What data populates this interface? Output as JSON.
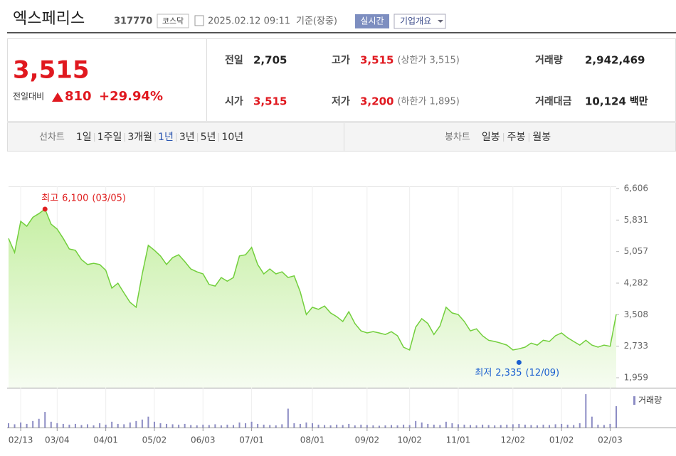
{
  "header": {
    "name": "엑스페리스",
    "code": "317770",
    "market": "코스닥",
    "datetime": "2025.02.12 09:11",
    "basis": "기준(장중)",
    "realtime": "실시간",
    "overview": "기업개요"
  },
  "quote": {
    "price": "3,515",
    "change_label": "전일대비",
    "change": "810",
    "change_pct": "+29.94%"
  },
  "stats": [
    [
      {
        "label": "전일",
        "value": "2,705"
      },
      {
        "label": "고가",
        "value": "3,515",
        "note": "(상한가 3,515)"
      },
      {
        "label": "거래량",
        "value": "2,942,469"
      }
    ],
    [
      {
        "label": "시가",
        "value": "3,515"
      },
      {
        "label": "저가",
        "value": "3,200",
        "note": "(하한가 1,895)"
      },
      {
        "label": "거래대금",
        "value": "10,124",
        "unit": "백만"
      }
    ]
  ],
  "tabs": {
    "line_label": "선차트",
    "line_periods": [
      "1일",
      "1주일",
      "3개월",
      "1년",
      "3년",
      "5년",
      "10년"
    ],
    "selected": "1년",
    "candle_label": "봉차트",
    "candle_periods": [
      "일봉",
      "주봉",
      "월봉"
    ]
  },
  "chart_data": {
    "type": "line",
    "color": "#72cf3c",
    "categories": [
      null,
      null,
      "02/13",
      null,
      null,
      null,
      null,
      null,
      "03/04",
      null,
      null,
      null,
      null,
      null,
      null,
      null,
      "04/01",
      null,
      null,
      null,
      null,
      null,
      null,
      null,
      "05/02",
      null,
      null,
      null,
      null,
      null,
      null,
      null,
      "06/03",
      null,
      null,
      null,
      null,
      null,
      null,
      null,
      "07/01",
      null,
      null,
      null,
      null,
      null,
      null,
      null,
      null,
      null,
      "08/01",
      null,
      null,
      null,
      null,
      null,
      null,
      null,
      null,
      "09/02",
      null,
      null,
      null,
      null,
      null,
      null,
      "10/02",
      null,
      null,
      null,
      null,
      null,
      null,
      null,
      "11/01",
      null,
      null,
      null,
      null,
      null,
      null,
      null,
      null,
      "12/02",
      null,
      null,
      null,
      null,
      null,
      null,
      null,
      "01/02",
      null,
      null,
      null,
      null,
      null,
      null,
      null,
      "02/03",
      null
    ],
    "values": [
      5380,
      5035,
      5800,
      5680,
      5900,
      5990,
      6100,
      5730,
      5610,
      5380,
      5120,
      5090,
      4860,
      4740,
      4770,
      4740,
      4600,
      4160,
      4280,
      4040,
      3810,
      3690,
      4510,
      5210,
      5090,
      4950,
      4740,
      4910,
      4980,
      4810,
      4630,
      4560,
      4510,
      4250,
      4210,
      4420,
      4330,
      4420,
      4950,
      4980,
      5160,
      4740,
      4510,
      4630,
      4510,
      4560,
      4420,
      4460,
      4070,
      3510,
      3690,
      3640,
      3720,
      3550,
      3460,
      3340,
      3580,
      3290,
      3110,
      3060,
      3090,
      3060,
      3020,
      3090,
      2990,
      2710,
      2640,
      3200,
      3410,
      3290,
      3020,
      3230,
      3690,
      3550,
      3510,
      3340,
      3110,
      3160,
      2990,
      2880,
      2850,
      2810,
      2760,
      2640,
      2670,
      2710,
      2810,
      2760,
      2880,
      2850,
      2990,
      3060,
      2940,
      2850,
      2760,
      2880,
      2760,
      2710,
      2760,
      2730,
      3515
    ],
    "ylim": [
      1714,
      6658
    ],
    "yticks": [
      {
        "value": 1959,
        "label": "1,959"
      },
      {
        "value": 2733,
        "label": "2,733"
      },
      {
        "value": 3508,
        "label": "3,508"
      },
      {
        "value": 4282,
        "label": "4,282"
      },
      {
        "value": 5057,
        "label": "5,057"
      },
      {
        "value": 5831,
        "label": "5,831"
      },
      {
        "value": 6606,
        "label": "6,606"
      }
    ],
    "grid": false,
    "annotations": [
      {
        "label": "최고",
        "value": 6100,
        "value_label": "6,100",
        "date": "(03/05)",
        "color": "#e02020"
      },
      {
        "label": "최저",
        "value": 2335,
        "value_label": "2,335",
        "date": "(12/09)",
        "color": "#1a5fd0"
      }
    ],
    "volume": {
      "name": "거래량",
      "color": "#8c8cc4",
      "ylim": [
        0,
        4900000
      ],
      "values": [
        600000,
        450000,
        700000,
        500000,
        900000,
        1200000,
        2150000,
        800000,
        600000,
        500000,
        400000,
        500000,
        350000,
        450000,
        300000,
        600000,
        400000,
        800000,
        500000,
        450000,
        700000,
        900000,
        1100000,
        1500000,
        800000,
        600000,
        500000,
        450000,
        400000,
        500000,
        350000,
        300000,
        400000,
        350000,
        450000,
        300000,
        400000,
        350000,
        700000,
        600000,
        800000,
        500000,
        400000,
        350000,
        300000,
        450000,
        2600000,
        600000,
        500000,
        700000,
        600000,
        400000,
        350000,
        300000,
        400000,
        350000,
        500000,
        300000,
        400000,
        350000,
        300000,
        250000,
        300000,
        350000,
        300000,
        400000,
        350000,
        900000,
        700000,
        500000,
        400000,
        350000,
        800000,
        600000,
        450000,
        400000,
        350000,
        300000,
        400000,
        350000,
        300000,
        350000,
        400000,
        450000,
        500000,
        400000,
        350000,
        300000,
        400000,
        350000,
        450000,
        500000,
        400000,
        350000,
        600000,
        4600000,
        1500000,
        400000,
        350000,
        500000,
        2942469
      ]
    }
  }
}
